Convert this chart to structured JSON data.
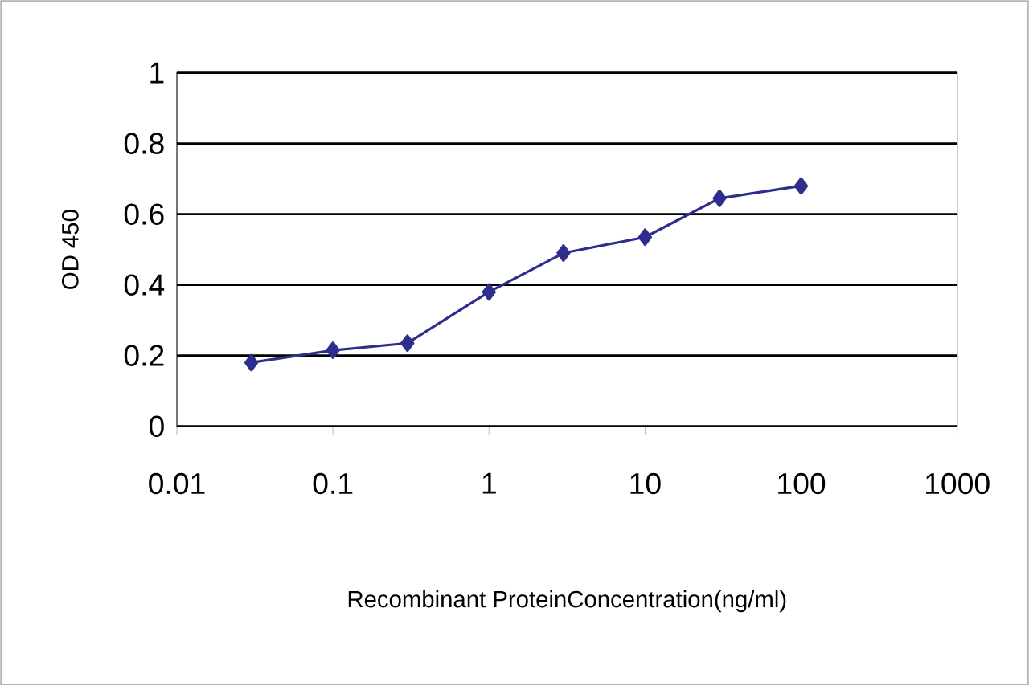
{
  "chart_data": {
    "type": "line",
    "xlabel": "Recombinant ProteinConcentration(ng/ml)",
    "ylabel": "OD 450",
    "x": [
      0.03,
      0.1,
      0.3,
      1,
      3,
      10,
      30,
      100
    ],
    "series": [
      {
        "color": "#2e2e8c",
        "values": [
          0.18,
          0.215,
          0.235,
          0.38,
          0.49,
          0.535,
          0.645,
          0.68
        ]
      }
    ],
    "log": "x",
    "xlim": [
      0.01,
      1000
    ],
    "xticks": [
      0.01,
      0.1,
      1,
      10,
      100,
      1000
    ],
    "ylim": [
      0,
      1
    ],
    "yticks": [
      0,
      0.2,
      0.4,
      0.6,
      0.8,
      1
    ],
    "grid": "y",
    "marker": "diamond",
    "line_style": "solid"
  }
}
